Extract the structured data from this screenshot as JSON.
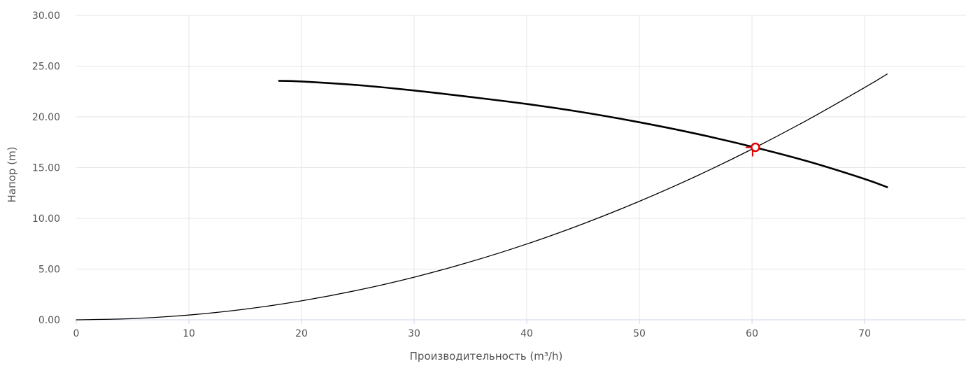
{
  "chart_data": {
    "type": "line",
    "title": "",
    "xlabel": "Производительность (m³/h)",
    "ylabel": "Напор (m)",
    "xlim": [
      0,
      79
    ],
    "ylim": [
      0,
      30
    ],
    "x_ticks": [
      0,
      10,
      20,
      30,
      40,
      50,
      60,
      70
    ],
    "x_tick_labels": [
      "0",
      "10",
      "20",
      "30",
      "40",
      "50",
      "60",
      "70"
    ],
    "y_ticks": [
      0,
      5,
      10,
      15,
      20,
      25,
      30
    ],
    "y_tick_labels": [
      "0.00",
      "5.00",
      "10.00",
      "15.00",
      "20.00",
      "25.00",
      "30.00"
    ],
    "grid": true,
    "series": [
      {
        "role": "pump-curve",
        "color": "#000000",
        "x": [
          18,
          20,
          25,
          30,
          35,
          40,
          45,
          50,
          55,
          60,
          65,
          70,
          72
        ],
        "y": [
          23.55,
          23.49,
          23.13,
          22.6,
          21.96,
          21.27,
          20.45,
          19.47,
          18.35,
          17.06,
          15.6,
          13.88,
          13.07
        ]
      },
      {
        "role": "system-curve",
        "color": "#000000",
        "x": [
          0,
          5,
          10,
          15,
          20,
          25,
          30,
          35,
          40,
          45,
          50,
          55,
          60,
          65,
          70,
          72
        ],
        "y": [
          0,
          0.12,
          0.47,
          1.05,
          1.87,
          2.92,
          4.2,
          5.72,
          7.47,
          9.46,
          11.68,
          14.13,
          16.82,
          19.74,
          22.89,
          24.22
        ]
      }
    ],
    "operating_point": {
      "x": 60.3,
      "y": 17.0,
      "color": "#e00000"
    }
  }
}
